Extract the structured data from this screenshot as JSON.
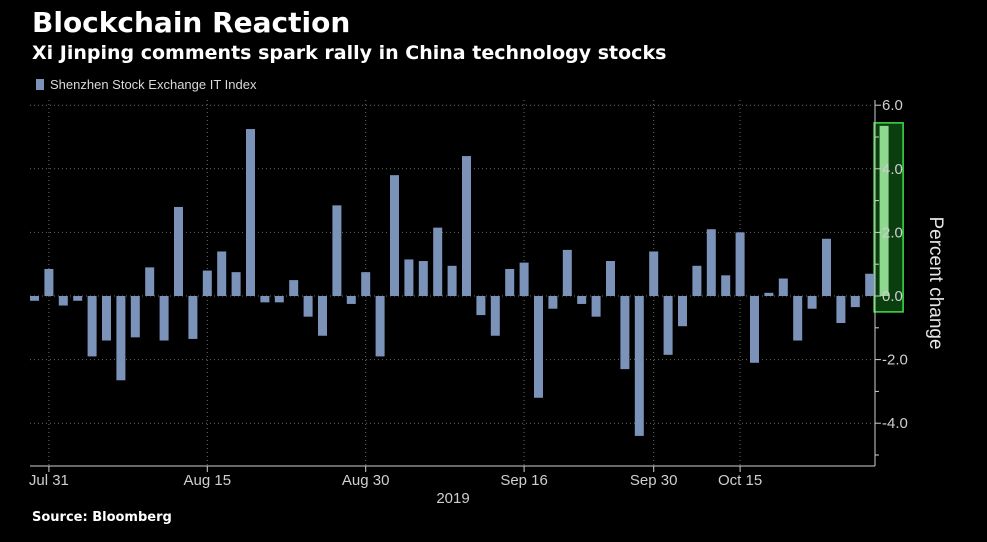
{
  "header": {
    "title": "Blockchain Reaction",
    "subtitle": "Xi Jinping comments spark rally in China technology stocks"
  },
  "footer": {
    "source": "Source: Bloomberg"
  },
  "chart_data": {
    "type": "bar",
    "ylabel": "Percent change",
    "xlabel": "2019",
    "ylim": [
      -5.3,
      6.0
    ],
    "yticks": [
      6.0,
      4.0,
      2.0,
      0.0,
      -2.0,
      -4.0
    ],
    "ytick_labels": [
      "6.0",
      "4.0",
      "2.0",
      "0.0",
      "-2.0",
      "-4.0"
    ],
    "x_ticks": [
      {
        "label": "Jul 31",
        "index": 1
      },
      {
        "label": "Aug 15",
        "index": 12
      },
      {
        "label": "Aug 30",
        "index": 23
      },
      {
        "label": "Sep 16",
        "index": 34
      },
      {
        "label": "Sep 30",
        "index": 43
      },
      {
        "label": "Oct 15",
        "index": 49
      }
    ],
    "grid": true,
    "legend_position": "top-left",
    "series": [
      {
        "name": "Shenzhen Stock Exchange IT Index",
        "color": "#7b93b9",
        "values": [
          -0.15,
          0.85,
          -0.3,
          -0.15,
          -1.9,
          -1.4,
          -2.65,
          -1.3,
          0.9,
          -1.4,
          2.8,
          -1.35,
          0.8,
          1.4,
          0.75,
          5.25,
          -0.2,
          -0.2,
          0.5,
          -0.65,
          -1.25,
          2.85,
          -0.25,
          0.75,
          -1.9,
          3.8,
          1.15,
          1.1,
          2.15,
          0.95,
          4.4,
          -0.6,
          -1.25,
          0.85,
          1.05,
          -3.2,
          -0.4,
          1.45,
          -0.25,
          -0.65,
          1.1,
          -2.3,
          -4.4,
          1.4,
          -1.85,
          -0.95,
          0.95,
          2.1,
          0.65,
          2.0,
          -2.1,
          0.1,
          0.55,
          -1.4,
          -0.4,
          1.8,
          -0.85,
          -0.35,
          0.7,
          5.35
        ]
      }
    ],
    "highlight": {
      "index": 59,
      "color": "#22c22a"
    }
  }
}
